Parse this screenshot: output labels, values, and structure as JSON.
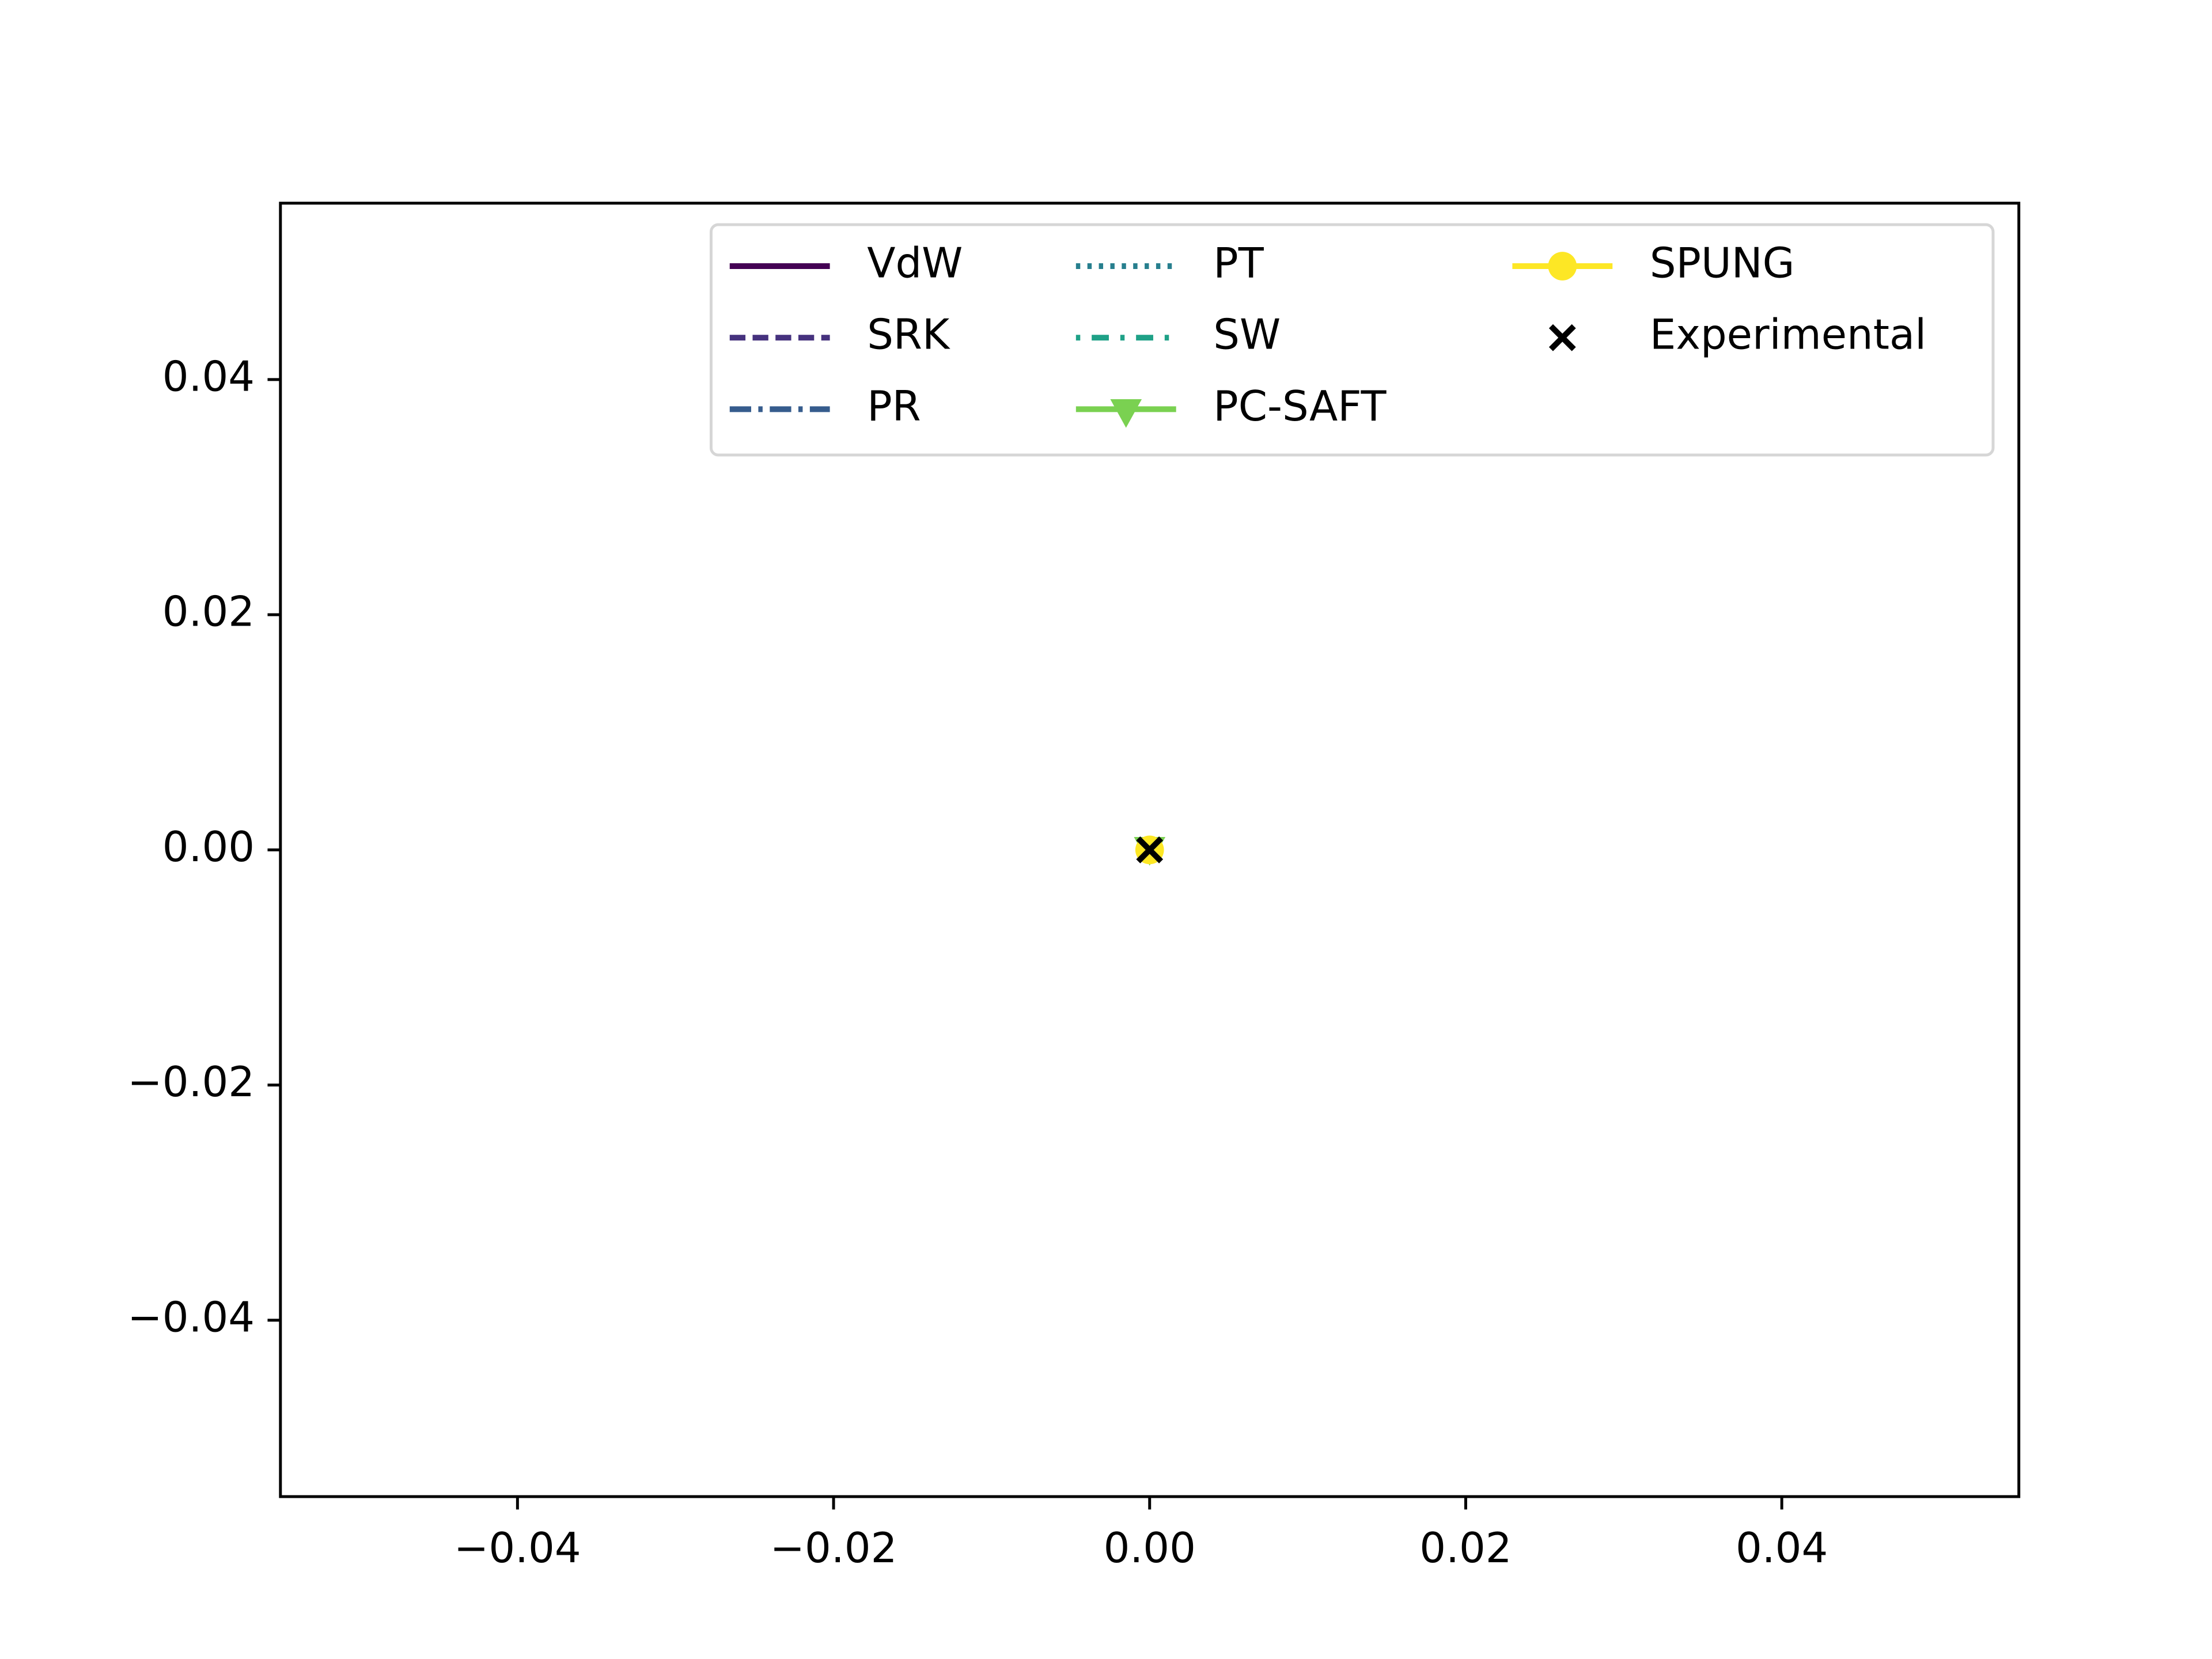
{
  "chart_data": {
    "type": "line",
    "x": [
      0
    ],
    "series": [
      {
        "name": "VdW",
        "color": "#440154",
        "linestyle": "solid",
        "values": [
          0
        ]
      },
      {
        "name": "SRK",
        "color": "#46327e",
        "linestyle": "dashed",
        "values": [
          0
        ]
      },
      {
        "name": "PR",
        "color": "#365c8d",
        "linestyle": "dashdot",
        "values": [
          0
        ]
      },
      {
        "name": "PT",
        "color": "#277f8e",
        "linestyle": "dotted",
        "values": [
          0
        ]
      },
      {
        "name": "SW",
        "color": "#1fa187",
        "linestyle": "dashdotdot",
        "values": [
          0
        ]
      },
      {
        "name": "PC-SAFT",
        "color": "#7ad151",
        "linestyle": "solid",
        "marker": "triangle-down",
        "values": [
          0
        ]
      },
      {
        "name": "SPUNG",
        "color": "#fde725",
        "linestyle": "solid",
        "marker": "circle",
        "values": [
          0
        ]
      },
      {
        "name": "Experimental",
        "color": "#000000",
        "linestyle": "none",
        "marker": "x",
        "values": [
          0
        ]
      }
    ],
    "xlim": [
      -0.055,
      0.055
    ],
    "ylim": [
      -0.055,
      0.055
    ],
    "xticks": [
      {
        "value": -0.04,
        "label": "−0.04"
      },
      {
        "value": -0.02,
        "label": "−0.02"
      },
      {
        "value": 0,
        "label": "0.00"
      },
      0.02,
      0.04
    ],
    "yticks": [
      {
        "value": -0.04,
        "label": "−0.04"
      },
      {
        "value": -0.02,
        "label": "−0.02"
      },
      {
        "value": 0,
        "label": "0.00"
      },
      0.02,
      0.04
    ],
    "legend": "upper right",
    "legend_columns": 3,
    "grid": false
  }
}
